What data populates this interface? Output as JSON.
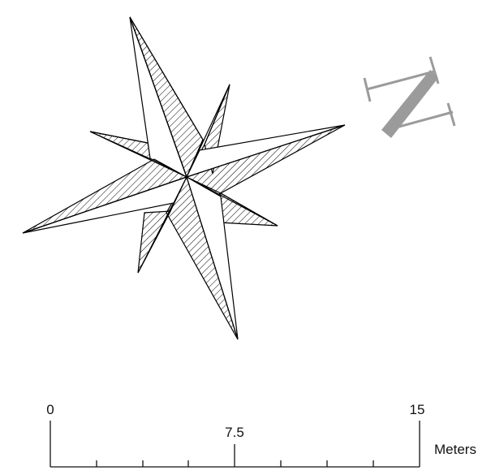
{
  "compass_rose": {
    "icon": "compass-rose-icon",
    "points": 8,
    "stroke_color": "#000000",
    "fill_color": "#ffffff"
  },
  "north_arrow": {
    "icon": "north-arrow-icon",
    "letter": "N",
    "color": "#9b9b9b"
  },
  "scale_bar": {
    "ticks": [
      "0",
      "7.5",
      "15"
    ],
    "unit": "Meters",
    "color": "#111111"
  }
}
